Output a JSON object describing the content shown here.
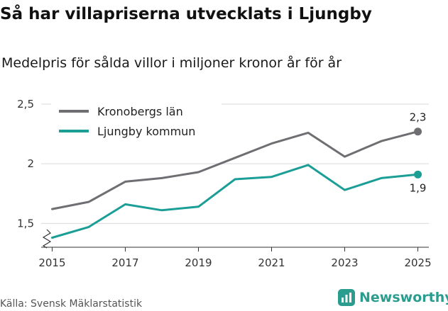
{
  "header": {
    "title": "Så har villapriserna utvecklats i Ljungby",
    "subtitle": "Medelpris för sålda villor i miljoner kronor år för år"
  },
  "footer": {
    "source": "Källa: Svensk Mäklarstatistik",
    "brand": "Newsworthy",
    "brand_color": "#2a9d8f"
  },
  "chart_data": {
    "type": "line",
    "title": "Så har villapriserna utvecklats i Ljungby",
    "subtitle": "Medelpris för sålda villor i miljoner kronor år för år",
    "xlabel": "",
    "ylabel": "",
    "x": [
      2015,
      2016,
      2017,
      2018,
      2019,
      2020,
      2021,
      2022,
      2023,
      2024,
      2025
    ],
    "xticks": [
      2015,
      2017,
      2019,
      2021,
      2023,
      2025
    ],
    "xtick_labels": [
      "2015",
      "2017",
      "2019",
      "2021",
      "2023",
      "2025"
    ],
    "yticks": [
      1.5,
      2,
      2.5
    ],
    "ytick_labels": [
      "1,5",
      "2",
      "2,5"
    ],
    "ylim": [
      1.3,
      2.5
    ],
    "xlim": [
      2014.7,
      2025.3
    ],
    "axis_break": true,
    "grid": true,
    "legend_position": "top-left",
    "series": [
      {
        "name": "Kronobergs län",
        "color": "#6e6e73",
        "values": [
          1.62,
          1.68,
          1.85,
          1.88,
          1.93,
          2.05,
          2.17,
          2.26,
          2.06,
          2.19,
          2.27
        ],
        "end_label": "2,3"
      },
      {
        "name": "Ljungby kommun",
        "color": "#1a9e96",
        "values": [
          1.38,
          1.47,
          1.66,
          1.61,
          1.64,
          1.87,
          1.89,
          1.99,
          1.78,
          1.88,
          1.91
        ],
        "end_label": "1,9"
      }
    ]
  }
}
